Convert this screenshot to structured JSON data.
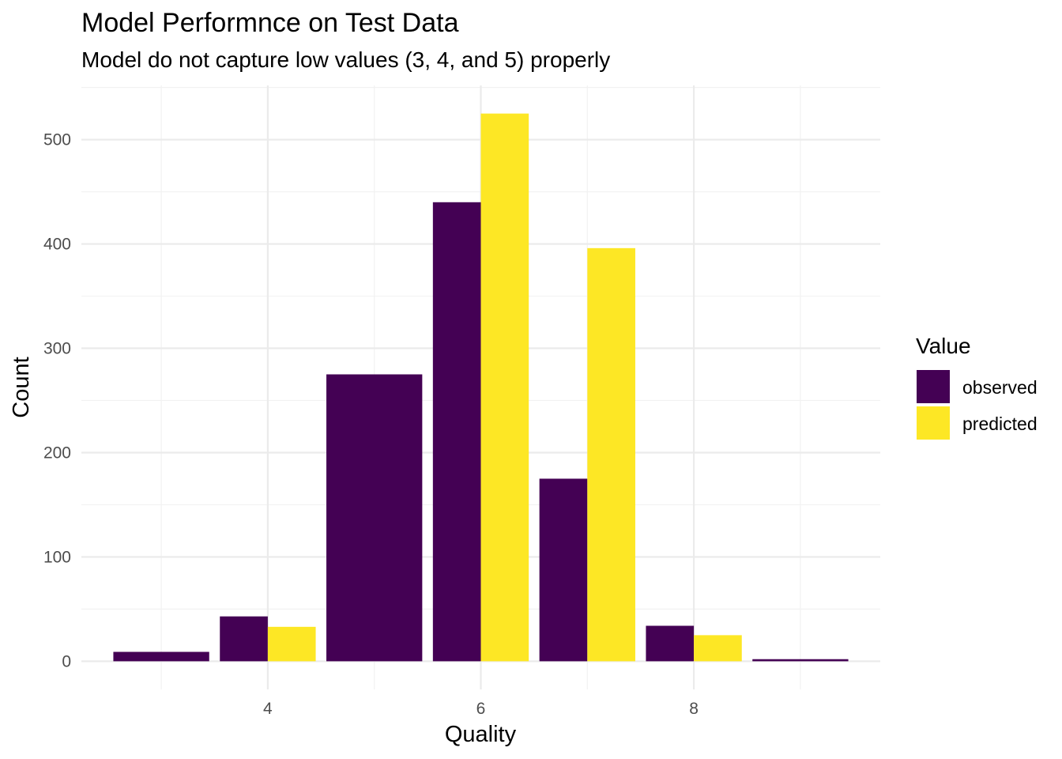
{
  "chart_data": {
    "type": "bar",
    "title": "Model Performnce on Test Data",
    "subtitle": "Model do not capture low values (3, 4, and 5) properly",
    "xlabel": "Quality",
    "ylabel": "Count",
    "x_ticks": [
      4,
      6,
      8
    ],
    "y_ticks": [
      0,
      100,
      200,
      300,
      400,
      500
    ],
    "xlim": [
      2.25,
      9.75
    ],
    "ylim": [
      -27,
      552
    ],
    "grid": true,
    "legend": {
      "title": "Value",
      "placement": "right"
    },
    "series": [
      {
        "name": "observed",
        "color": "#440154",
        "points": [
          {
            "x": 3,
            "y": 9
          },
          {
            "x": 4,
            "y": 43
          },
          {
            "x": 5,
            "y": 275
          },
          {
            "x": 6,
            "y": 440
          },
          {
            "x": 7,
            "y": 175
          },
          {
            "x": 8,
            "y": 34
          },
          {
            "x": 9,
            "y": 2
          }
        ]
      },
      {
        "name": "predicted",
        "color": "#FDE725",
        "points": [
          {
            "x": 4,
            "y": 33
          },
          {
            "x": 6,
            "y": 525
          },
          {
            "x": 7,
            "y": 396
          },
          {
            "x": 8,
            "y": 25
          }
        ]
      }
    ]
  }
}
